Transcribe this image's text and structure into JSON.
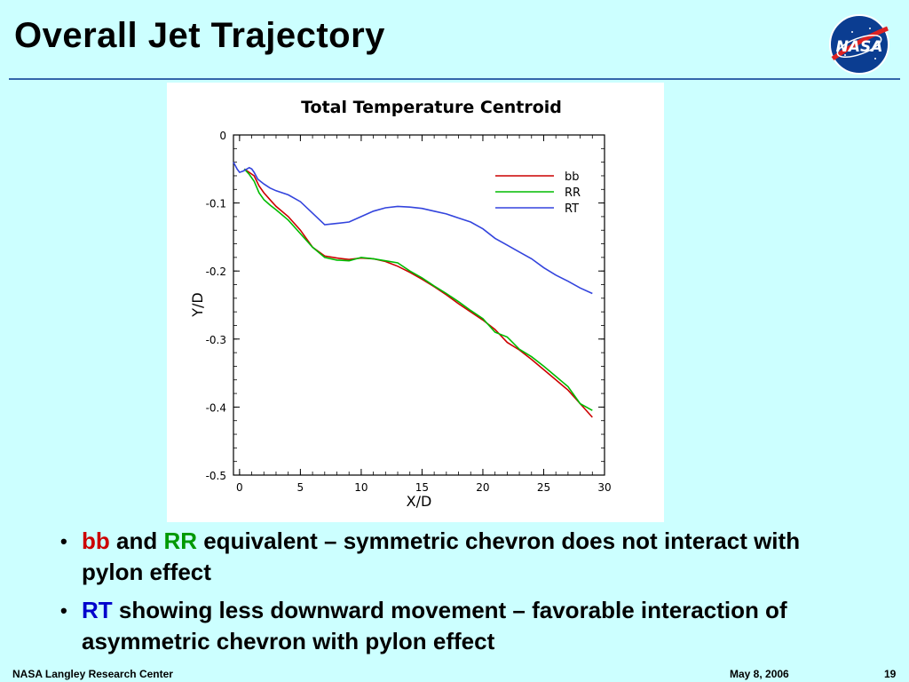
{
  "slide": {
    "title": "Overall Jet Trajectory",
    "logo_text": "NASA",
    "footer_left": "NASA Langley Research Center",
    "footer_date": "May 8, 2006",
    "page_number": "19"
  },
  "bullets": [
    {
      "parts": [
        {
          "text": "bb",
          "color": "red"
        },
        {
          "text": " and ",
          "color": "black"
        },
        {
          "text": "RR",
          "color": "green"
        },
        {
          "text": " equivalent – symmetric chevron does not interact with pylon effect",
          "color": "black"
        }
      ]
    },
    {
      "parts": [
        {
          "text": "RT",
          "color": "blue"
        },
        {
          "text": " showing less downward movement – favorable interaction of asymmetric chevron with pylon effect",
          "color": "black"
        }
      ]
    }
  ],
  "chart_data": {
    "type": "line",
    "title": "Total Temperature Centroid",
    "xlabel": "X/D",
    "ylabel": "Y/D",
    "xlim": [
      -0.5,
      30
    ],
    "ylim": [
      -0.5,
      0
    ],
    "xticks": [
      0,
      5,
      10,
      15,
      20,
      25,
      30
    ],
    "yticks": [
      0,
      -0.1,
      -0.2,
      -0.3,
      -0.4,
      -0.5
    ],
    "ytick_labels": [
      "0",
      "-0.1",
      "-0.2",
      "-0.3",
      "-0.4",
      "-0.5"
    ],
    "grid": false,
    "legend_position": "top-right",
    "series": [
      {
        "name": "bb",
        "color": "#cc0000",
        "x": [
          0.4,
          0.8,
          1.2,
          1.6,
          2.0,
          2.5,
          3.0,
          4.0,
          5.0,
          6.0,
          7.0,
          8.0,
          9.0,
          10.0,
          11.0,
          12.0,
          13.0,
          14.0,
          15.0,
          16.0,
          17.0,
          18.0,
          19.0,
          20.0,
          21.0,
          22.0,
          23.0,
          24.0,
          25.0,
          26.0,
          27.0,
          28.0,
          29.0
        ],
        "y": [
          -0.05,
          -0.055,
          -0.06,
          -0.075,
          -0.085,
          -0.095,
          -0.105,
          -0.12,
          -0.14,
          -0.165,
          -0.178,
          -0.181,
          -0.183,
          -0.181,
          -0.182,
          -0.186,
          -0.193,
          -0.202,
          -0.212,
          -0.223,
          -0.235,
          -0.248,
          -0.26,
          -0.272,
          -0.286,
          -0.305,
          -0.316,
          -0.33,
          -0.345,
          -0.36,
          -0.375,
          -0.395,
          -0.415
        ]
      },
      {
        "name": "RR",
        "color": "#00bb00",
        "x": [
          0.4,
          0.8,
          1.2,
          1.6,
          2.0,
          2.5,
          3.0,
          4.0,
          5.0,
          6.0,
          7.0,
          8.0,
          9.0,
          10.0,
          11.0,
          12.0,
          13.0,
          14.0,
          15.0,
          16.0,
          17.0,
          18.0,
          19.0,
          20.0,
          21.0,
          22.0,
          23.0,
          24.0,
          25.0,
          26.0,
          27.0,
          28.0,
          29.0
        ],
        "y": [
          -0.05,
          -0.058,
          -0.068,
          -0.085,
          -0.095,
          -0.103,
          -0.11,
          -0.125,
          -0.145,
          -0.165,
          -0.18,
          -0.184,
          -0.185,
          -0.18,
          -0.182,
          -0.185,
          -0.188,
          -0.2,
          -0.21,
          -0.222,
          -0.233,
          -0.245,
          -0.258,
          -0.27,
          -0.29,
          -0.297,
          -0.315,
          -0.326,
          -0.34,
          -0.355,
          -0.37,
          -0.395,
          -0.405
        ]
      },
      {
        "name": "RT",
        "color": "#3344dd",
        "x": [
          -0.5,
          -0.2,
          0.0,
          0.3,
          0.6,
          0.8,
          1.0,
          1.2,
          1.5,
          2.0,
          2.5,
          3.0,
          4.0,
          5.0,
          6.0,
          7.0,
          8.0,
          9.0,
          10.0,
          11.0,
          12.0,
          13.0,
          14.0,
          15.0,
          16.0,
          17.0,
          18.0,
          19.0,
          20.0,
          21.0,
          22.0,
          23.0,
          24.0,
          25.0,
          26.0,
          27.0,
          28.0,
          29.0
        ],
        "y": [
          -0.04,
          -0.05,
          -0.055,
          -0.053,
          -0.05,
          -0.048,
          -0.05,
          -0.055,
          -0.065,
          -0.072,
          -0.078,
          -0.082,
          -0.088,
          -0.098,
          -0.115,
          -0.132,
          -0.13,
          -0.128,
          -0.12,
          -0.112,
          -0.107,
          -0.105,
          -0.106,
          -0.108,
          -0.112,
          -0.116,
          -0.122,
          -0.128,
          -0.138,
          -0.152,
          -0.162,
          -0.172,
          -0.182,
          -0.195,
          -0.206,
          -0.215,
          -0.225,
          -0.233
        ]
      }
    ]
  }
}
